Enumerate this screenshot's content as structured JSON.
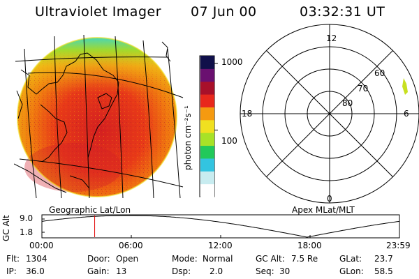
{
  "header": {
    "title": "Ultraviolet Imager",
    "date": "07 Jun 00",
    "time": "03:32:31 UT"
  },
  "colorbar": {
    "unit_label": "photon cm⁻²s⁻¹",
    "ticks": [
      {
        "label": "1000",
        "value": 1000
      },
      {
        "label": "100",
        "value": 100
      }
    ],
    "range": [
      10,
      1300
    ],
    "colors": [
      "#ffffff",
      "#c8ecf0",
      "#33c4e0",
      "#22c95a",
      "#a8e227",
      "#f0e020",
      "#f59a10",
      "#e8281c",
      "#a8102a",
      "#6a1070",
      "#10104a"
    ]
  },
  "left_panel": {
    "caption": "Geographic Lat/Lon"
  },
  "right_panel": {
    "caption": "Apex MLat/MLT",
    "mlt_labels": {
      "top": "12",
      "left": "18",
      "right": "6",
      "bottom": "0"
    },
    "lat_labels": [
      "60",
      "70",
      "80"
    ]
  },
  "altitude_plot": {
    "ylabel": "GC Alt",
    "yticks": [
      "9.0",
      "1.8"
    ],
    "ylim": [
      1.8,
      9.0
    ],
    "xticks": [
      "00:00",
      "06:00",
      "12:00",
      "18:00",
      "23:59"
    ],
    "xlim_hours": [
      0,
      24
    ],
    "current_time_hours": 3.542,
    "marker_color": "#e00000"
  },
  "info": {
    "flt_label": "Flt:",
    "flt_value": "1304",
    "ip_label": "IP:",
    "ip_value": "36.0",
    "door_label": "Door:",
    "door_value": "Open",
    "gain_label": "Gain:",
    "gain_value": "13",
    "mode_label": "Mode:",
    "mode_value": "Normal",
    "dsp_label": "Dsp:",
    "dsp_value": "2.0",
    "gcalt_label": "GC Alt:",
    "gcalt_value": "7.5 Re",
    "seq_label": "Seq:",
    "seq_value": "30",
    "glat_label": "GLat:",
    "glat_value": "23.7",
    "glon_label": "GLon:",
    "glon_value": "58.5"
  }
}
